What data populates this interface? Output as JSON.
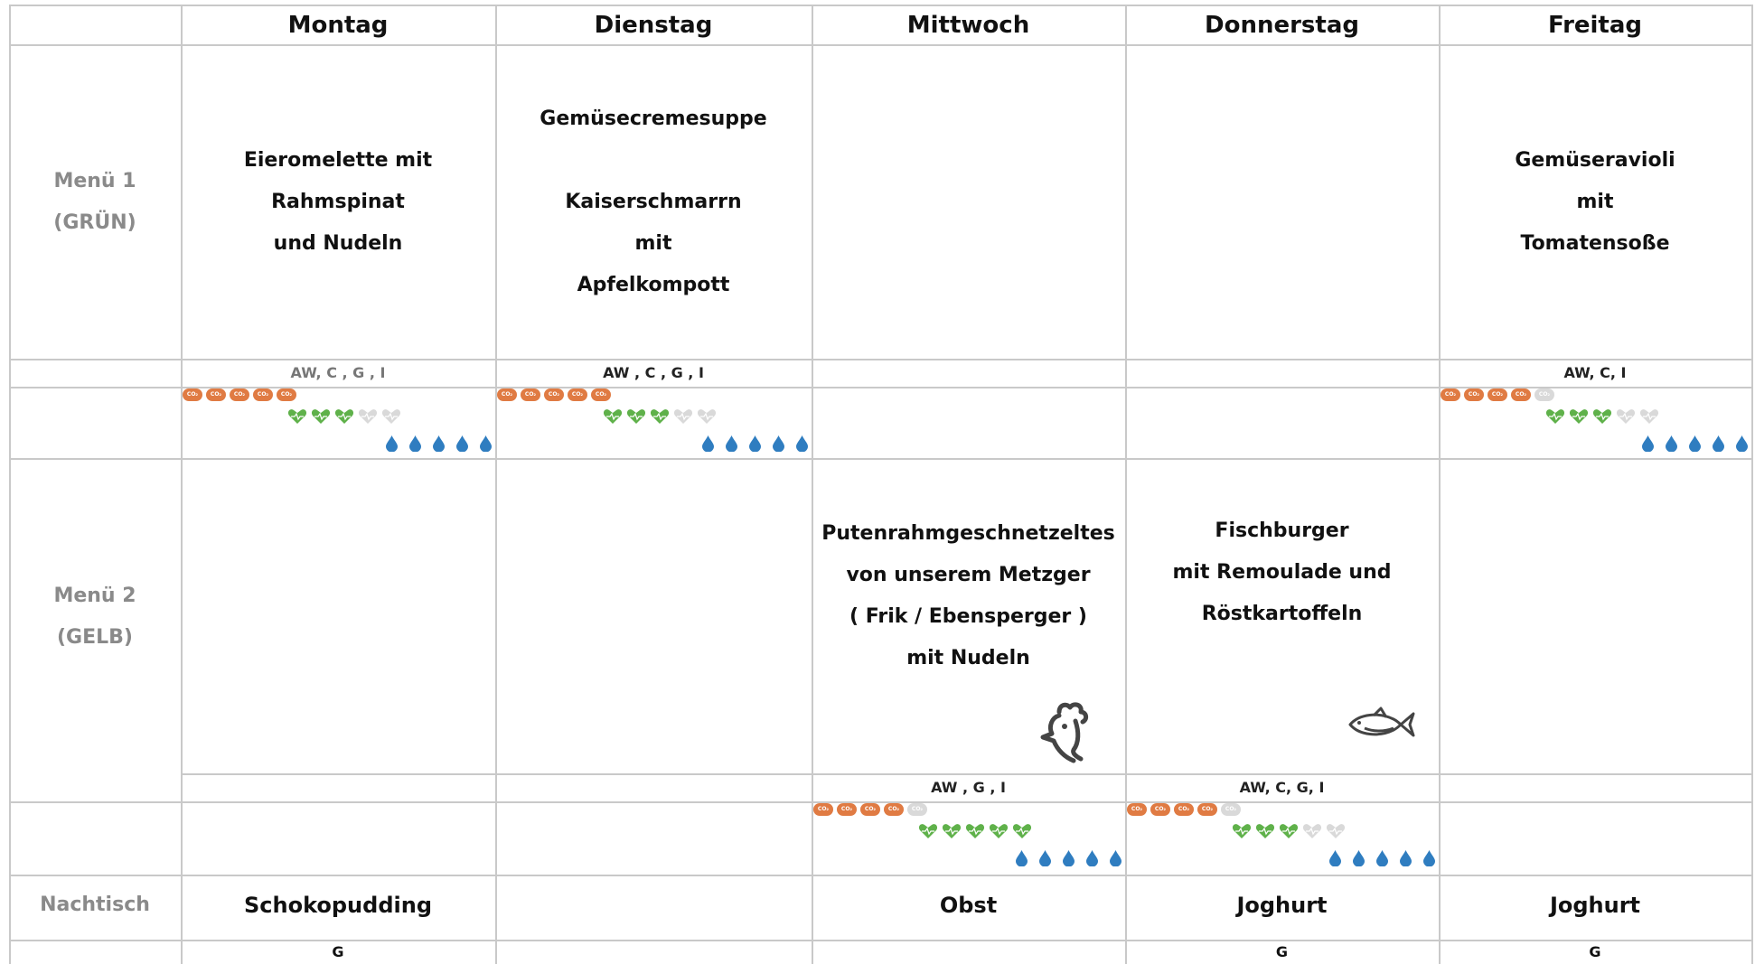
{
  "days": [
    "Montag",
    "Dienstag",
    "Mittwoch",
    "Donnerstag",
    "Freitag"
  ],
  "rows": {
    "menu1": {
      "line1": "Menü 1",
      "line2": "(GRÜN)"
    },
    "menu2": {
      "line1": "Menü 2",
      "line2": "(GELB)"
    },
    "dessert": "Nachtisch"
  },
  "menu1": {
    "montag": {
      "lines": [
        "Eieromelette mit Rahmspinat",
        "und Nudeln"
      ],
      "allergens": "AW, C , G , I",
      "co2": 5,
      "health": 3,
      "water": 5
    },
    "dienstag": {
      "lines": [
        "Gemüsecremesuppe",
        "",
        "Kaiserschmarrn",
        "mit",
        "Apfelkompott"
      ],
      "allergens": "AW ,  C , G , I",
      "co2": 5,
      "health": 3,
      "water": 5
    },
    "freitag": {
      "lines": [
        "Gemüseravioli",
        "mit",
        "Tomatensoße"
      ],
      "allergens": "AW, C, I",
      "co2": 4,
      "health": 3,
      "water": 5
    }
  },
  "menu2": {
    "mittwoch": {
      "lines": [
        "Putenrahmgeschnetzeltes",
        "von unserem Metzger",
        "( Frik / Ebensperger )",
        "mit Nudeln"
      ],
      "allergens": "AW , G , I",
      "animal": "chicken-icon",
      "co2": 4,
      "health": 5,
      "water": 5
    },
    "donnerstag": {
      "lines": [
        "Fischburger",
        "mit Remoulade und",
        "Röstkartoffeln"
      ],
      "allergens": "AW, C, G, I",
      "animal": "fish-icon",
      "co2": 4,
      "health": 3,
      "water": 5
    }
  },
  "dessert": {
    "montag": {
      "name": "Schokopudding",
      "allergens": "G"
    },
    "mittwoch": {
      "name": "Obst",
      "allergens": ""
    },
    "donnerstag": {
      "name": "Joghurt",
      "allergens": "G"
    },
    "freitag": {
      "name": "Joghurt",
      "allergens": "G"
    }
  },
  "icon_labels": {
    "co2": "CO₂"
  },
  "colors": {
    "co2_on": "#e07b43",
    "co2_off": "#d9d9d9",
    "health_on": "#5fb14a",
    "health_off": "#d9d9d9",
    "water": "#2f7dc0",
    "grid": "#c9c9c9",
    "label_grey": "#8a8a8a"
  }
}
